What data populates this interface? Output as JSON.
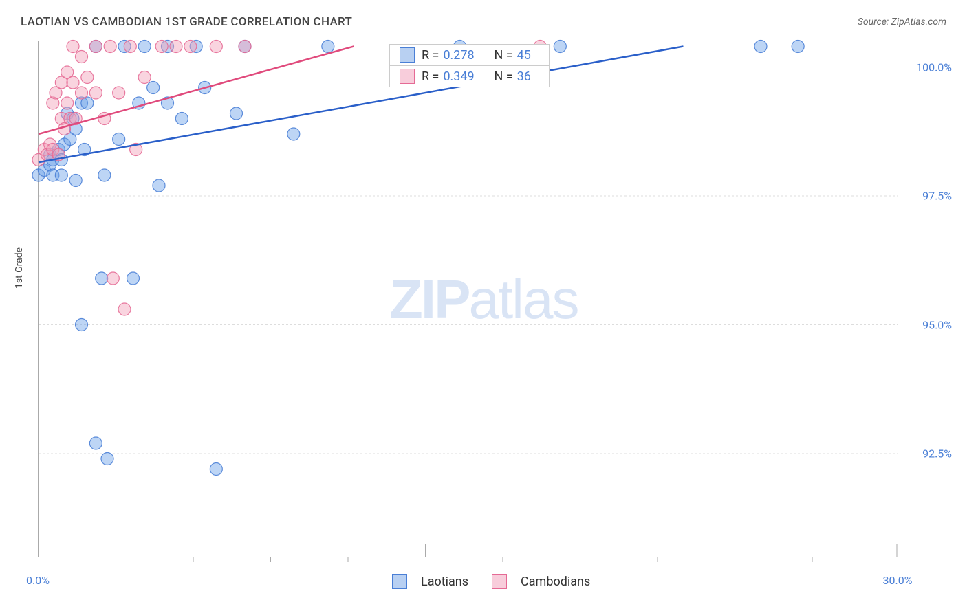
{
  "title": "LAOTIAN VS CAMBODIAN 1ST GRADE CORRELATION CHART",
  "source": "Source: ZipAtlas.com",
  "y_axis_title": "1st Grade",
  "watermark": {
    "zip": "ZIP",
    "rest": "atlas"
  },
  "chart": {
    "type": "scatter",
    "xlim": [
      0.0,
      30.0
    ],
    "ylim": [
      90.5,
      100.5
    ],
    "x_ticks": [
      0.0,
      30.0
    ],
    "x_tick_labels": [
      "0.0%",
      "30.0%"
    ],
    "x_minor_ticks": [
      2.7,
      5.4,
      8.1,
      10.8,
      16.2,
      18.9,
      21.6,
      24.3,
      27.0
    ],
    "y_ticks": [
      92.5,
      95.0,
      97.5,
      100.0
    ],
    "y_tick_labels": [
      "92.5%",
      "95.0%",
      "97.5%",
      "100.0%"
    ],
    "grid_color": "#dddddd",
    "background_color": "#ffffff",
    "marker_radius": 9,
    "marker_fill_opacity": 0.45,
    "marker_stroke_opacity": 0.9,
    "marker_stroke_width": 1.2,
    "series": [
      {
        "name": "Laotians",
        "color": "#6ca2e8",
        "stroke": "#4a7fd6",
        "r": 0.278,
        "n": 45,
        "regression_line": {
          "x1": 0.0,
          "y1": 98.15,
          "x2": 22.5,
          "y2": 100.4,
          "color": "#2a5fc9",
          "width": 2.5
        },
        "points": [
          [
            0.0,
            97.9
          ],
          [
            0.2,
            98.0
          ],
          [
            0.4,
            98.1
          ],
          [
            0.4,
            98.3
          ],
          [
            0.5,
            98.2
          ],
          [
            0.5,
            97.9
          ],
          [
            0.7,
            98.4
          ],
          [
            0.8,
            98.2
          ],
          [
            0.8,
            97.9
          ],
          [
            0.9,
            98.5
          ],
          [
            1.0,
            99.1
          ],
          [
            1.1,
            98.6
          ],
          [
            1.2,
            99.0
          ],
          [
            1.3,
            97.8
          ],
          [
            1.3,
            98.8
          ],
          [
            1.5,
            99.3
          ],
          [
            1.5,
            95.0
          ],
          [
            1.6,
            98.4
          ],
          [
            1.7,
            99.3
          ],
          [
            2.0,
            92.7
          ],
          [
            2.0,
            100.4
          ],
          [
            2.2,
            95.9
          ],
          [
            2.3,
            97.9
          ],
          [
            2.4,
            92.4
          ],
          [
            2.8,
            98.6
          ],
          [
            3.0,
            100.4
          ],
          [
            3.3,
            95.9
          ],
          [
            3.5,
            99.3
          ],
          [
            3.7,
            100.4
          ],
          [
            4.0,
            99.6
          ],
          [
            4.2,
            97.7
          ],
          [
            4.5,
            99.3
          ],
          [
            4.5,
            100.4
          ],
          [
            5.0,
            99.0
          ],
          [
            5.5,
            100.4
          ],
          [
            5.8,
            99.6
          ],
          [
            6.2,
            92.2
          ],
          [
            6.9,
            99.1
          ],
          [
            7.2,
            100.4
          ],
          [
            8.9,
            98.7
          ],
          [
            10.1,
            100.4
          ],
          [
            14.7,
            100.4
          ],
          [
            18.2,
            100.4
          ],
          [
            25.2,
            100.4
          ],
          [
            26.5,
            100.4
          ]
        ]
      },
      {
        "name": "Cambodians",
        "color": "#f19fb8",
        "stroke": "#e56a95",
        "r": 0.349,
        "n": 36,
        "regression_line": {
          "x1": 0.0,
          "y1": 98.7,
          "x2": 11.0,
          "y2": 100.4,
          "color": "#e04a7c",
          "width": 2.5
        },
        "points": [
          [
            0.0,
            98.2
          ],
          [
            0.2,
            98.4
          ],
          [
            0.3,
            98.3
          ],
          [
            0.4,
            98.5
          ],
          [
            0.5,
            98.4
          ],
          [
            0.5,
            99.3
          ],
          [
            0.6,
            99.5
          ],
          [
            0.7,
            98.3
          ],
          [
            0.8,
            99.0
          ],
          [
            0.8,
            99.7
          ],
          [
            0.9,
            98.8
          ],
          [
            1.0,
            99.3
          ],
          [
            1.0,
            99.9
          ],
          [
            1.1,
            99.0
          ],
          [
            1.2,
            99.7
          ],
          [
            1.2,
            100.4
          ],
          [
            1.3,
            99.0
          ],
          [
            1.5,
            99.5
          ],
          [
            1.5,
            100.2
          ],
          [
            1.7,
            99.8
          ],
          [
            2.0,
            99.5
          ],
          [
            2.0,
            100.4
          ],
          [
            2.3,
            99.0
          ],
          [
            2.5,
            100.4
          ],
          [
            2.6,
            95.9
          ],
          [
            2.8,
            99.5
          ],
          [
            3.0,
            95.3
          ],
          [
            3.2,
            100.4
          ],
          [
            3.4,
            98.4
          ],
          [
            3.7,
            99.8
          ],
          [
            4.3,
            100.4
          ],
          [
            4.8,
            100.4
          ],
          [
            5.3,
            100.4
          ],
          [
            6.2,
            100.4
          ],
          [
            7.2,
            100.4
          ],
          [
            17.5,
            100.4
          ]
        ]
      }
    ]
  },
  "legend_box": {
    "rows": [
      {
        "swatch_fill": "#b8d0f2",
        "swatch_border": "#4a7fd6",
        "r_label": "R =",
        "r_val": "0.278",
        "n_label": "N =",
        "n_val": "45"
      },
      {
        "swatch_fill": "#f8cddb",
        "swatch_border": "#e56a95",
        "r_label": "R =",
        "r_val": "0.349",
        "n_label": "N =",
        "n_val": "36"
      }
    ]
  },
  "bottom_legend": [
    {
      "swatch_fill": "#b8d0f2",
      "swatch_border": "#4a7fd6",
      "label": "Laotians"
    },
    {
      "swatch_fill": "#f8cddb",
      "swatch_border": "#e56a95",
      "label": "Cambodians"
    }
  ]
}
